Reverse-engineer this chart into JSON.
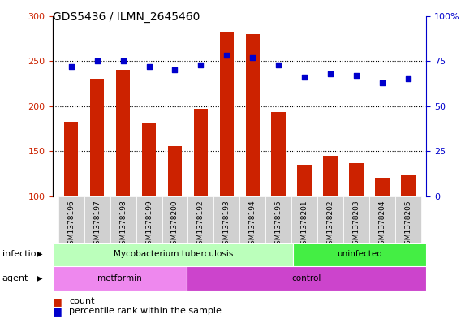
{
  "title": "GDS5436 / ILMN_2645460",
  "samples": [
    "GSM1378196",
    "GSM1378197",
    "GSM1378198",
    "GSM1378199",
    "GSM1378200",
    "GSM1378192",
    "GSM1378193",
    "GSM1378194",
    "GSM1378195",
    "GSM1378201",
    "GSM1378202",
    "GSM1378203",
    "GSM1378204",
    "GSM1378205"
  ],
  "counts": [
    183,
    230,
    240,
    181,
    156,
    197,
    283,
    280,
    193,
    135,
    145,
    137,
    120,
    123
  ],
  "percentiles": [
    72,
    75,
    75,
    72,
    70,
    73,
    78,
    77,
    73,
    66,
    68,
    67,
    63,
    65
  ],
  "ylim_left": [
    100,
    300
  ],
  "ylim_right": [
    0,
    100
  ],
  "yticks_left": [
    100,
    150,
    200,
    250,
    300
  ],
  "yticks_right": [
    0,
    25,
    50,
    75,
    100
  ],
  "bar_color": "#cc2200",
  "dot_color": "#0000cc",
  "plot_bg": "#ffffff",
  "tick_bg": "#d0d0d0",
  "infection_groups": [
    {
      "label": "Mycobacterium tuberculosis",
      "start": 0,
      "end": 9,
      "color": "#bbffbb"
    },
    {
      "label": "uninfected",
      "start": 9,
      "end": 14,
      "color": "#44ee44"
    }
  ],
  "agent_groups": [
    {
      "label": "metformin",
      "start": 0,
      "end": 5,
      "color": "#ee88ee"
    },
    {
      "label": "control",
      "start": 5,
      "end": 14,
      "color": "#cc44cc"
    }
  ],
  "infection_label": "infection",
  "agent_label": "agent",
  "legend_count": "count",
  "legend_percentile": "percentile rank within the sample",
  "right_axis_color": "#0000cc",
  "left_axis_color": "#cc2200",
  "hline_ticks": [
    150,
    200,
    250
  ]
}
